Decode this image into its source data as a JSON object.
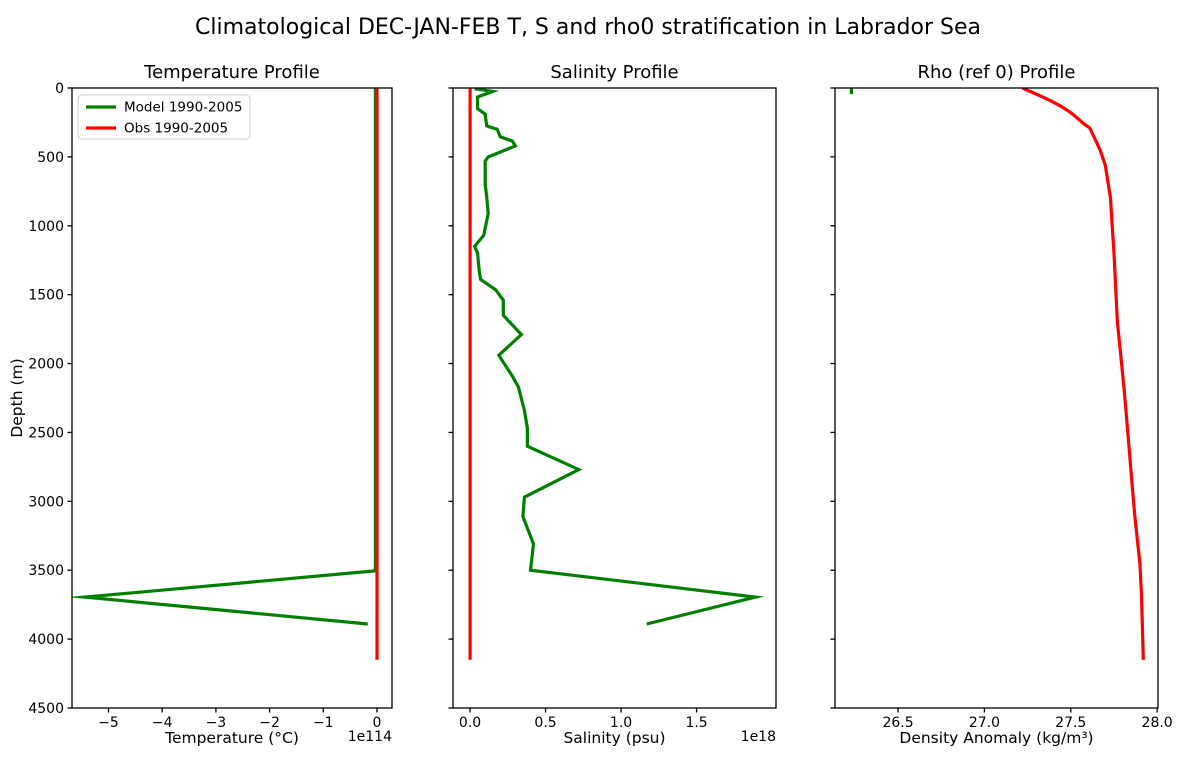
{
  "figure": {
    "title": "Climatological DEC-JAN-FEB T, S and rho0 stratification in Labrador Sea",
    "background": "#ffffff"
  },
  "colors": {
    "model": "#008000",
    "obs": "#ff0000",
    "spine": "#000000",
    "legend_border": "#cccccc"
  },
  "legend": {
    "entries": [
      {
        "label": "Model 1990-2005",
        "color": "#008000"
      },
      {
        "label": "Obs 1990-2005",
        "color": "#ff0000"
      }
    ]
  },
  "chart_data": [
    {
      "id": "temperature",
      "type": "line",
      "title": "Temperature Profile",
      "xlabel": "Temperature (°C)",
      "ylabel": "Depth (m)",
      "offset_text": "1e114",
      "xlim": [
        -5.68,
        0.28
      ],
      "ylim": [
        0,
        4500
      ],
      "y_inverted": true,
      "grid": false,
      "legend_visible": true,
      "show_ytick_labels": true,
      "xticks": [
        {
          "value": -5,
          "label": "−5"
        },
        {
          "value": -4,
          "label": "−4"
        },
        {
          "value": -3,
          "label": "−3"
        },
        {
          "value": -2,
          "label": "−2"
        },
        {
          "value": -1,
          "label": "−1"
        },
        {
          "value": 0,
          "label": "0"
        }
      ],
      "yticks": [
        {
          "value": 0,
          "label": "0"
        },
        {
          "value": 500,
          "label": "500"
        },
        {
          "value": 1000,
          "label": "1000"
        },
        {
          "value": 1500,
          "label": "1500"
        },
        {
          "value": 2000,
          "label": "2000"
        },
        {
          "value": 2500,
          "label": "2500"
        },
        {
          "value": 3000,
          "label": "3000"
        },
        {
          "value": 3500,
          "label": "3500"
        },
        {
          "value": 4000,
          "label": "4000"
        },
        {
          "value": 4500,
          "label": "4500"
        }
      ],
      "series": [
        {
          "id": "model",
          "name": "Model 1990-2005",
          "color": "#008000",
          "points": [
            [
              -0.03,
              0
            ],
            [
              -0.03,
              3480
            ],
            [
              -0.04,
              3505
            ],
            [
              -5.44,
              3695
            ],
            [
              -0.17,
              3890
            ]
          ]
        },
        {
          "id": "obs",
          "name": "Obs 1990-2005",
          "color": "#ff0000",
          "points": [
            [
              0,
              0
            ],
            [
              0,
              4150
            ]
          ]
        }
      ]
    },
    {
      "id": "salinity",
      "type": "line",
      "title": "Salinity Profile",
      "xlabel": "Salinity (psu)",
      "ylabel": "",
      "offset_text": "1e18",
      "xlim": [
        -0.113,
        2.026
      ],
      "ylim": [
        0,
        4500
      ],
      "y_inverted": true,
      "grid": false,
      "legend_visible": false,
      "show_ytick_labels": false,
      "xticks": [
        {
          "value": 0.0,
          "label": "0.0"
        },
        {
          "value": 0.5,
          "label": "0.5"
        },
        {
          "value": 1.0,
          "label": "1.0"
        },
        {
          "value": 1.5,
          "label": "1.5"
        }
      ],
      "yticks": [
        {
          "value": 0,
          "label": "0"
        },
        {
          "value": 500,
          "label": "500"
        },
        {
          "value": 1000,
          "label": "1000"
        },
        {
          "value": 1500,
          "label": "1500"
        },
        {
          "value": 2000,
          "label": "2000"
        },
        {
          "value": 2500,
          "label": "2500"
        },
        {
          "value": 3000,
          "label": "3000"
        },
        {
          "value": 3500,
          "label": "3500"
        },
        {
          "value": 4000,
          "label": "4000"
        },
        {
          "value": 4500,
          "label": "4500"
        }
      ],
      "series": [
        {
          "id": "model",
          "name": "Model 1990-2005",
          "color": "#008000",
          "points": [
            [
              0.03,
              5
            ],
            [
              0.15,
              25
            ],
            [
              0.05,
              65
            ],
            [
              0.05,
              150
            ],
            [
              0.1,
              190
            ],
            [
              0.11,
              275
            ],
            [
              0.18,
              300
            ],
            [
              0.2,
              355
            ],
            [
              0.28,
              385
            ],
            [
              0.3,
              420
            ],
            [
              0.12,
              500
            ],
            [
              0.1,
              530
            ],
            [
              0.1,
              700
            ],
            [
              0.11,
              790
            ],
            [
              0.12,
              910
            ],
            [
              0.09,
              1070
            ],
            [
              0.03,
              1150
            ],
            [
              0.05,
              1200
            ],
            [
              0.06,
              1320
            ],
            [
              0.07,
              1390
            ],
            [
              0.17,
              1465
            ],
            [
              0.22,
              1540
            ],
            [
              0.22,
              1650
            ],
            [
              0.34,
              1790
            ],
            [
              0.19,
              1940
            ],
            [
              0.28,
              2090
            ],
            [
              0.32,
              2170
            ],
            [
              0.36,
              2340
            ],
            [
              0.38,
              2470
            ],
            [
              0.38,
              2600
            ],
            [
              0.72,
              2770
            ],
            [
              0.36,
              2970
            ],
            [
              0.35,
              3110
            ],
            [
              0.42,
              3310
            ],
            [
              0.4,
              3500
            ],
            [
              1.89,
              3695
            ],
            [
              1.17,
              3890
            ]
          ]
        },
        {
          "id": "obs",
          "name": "Obs 1990-2005",
          "color": "#ff0000",
          "points": [
            [
              0,
              0
            ],
            [
              0,
              4150
            ]
          ]
        }
      ]
    },
    {
      "id": "rho0",
      "type": "line",
      "title": "Rho (ref 0) Profile",
      "xlabel": "Density Anomaly (kg/m³)",
      "ylabel": "",
      "offset_text": "",
      "xlim": [
        26.135,
        28.005
      ],
      "ylim": [
        0,
        4500
      ],
      "y_inverted": true,
      "grid": false,
      "legend_visible": false,
      "show_ytick_labels": false,
      "xticks": [
        {
          "value": 26.5,
          "label": "26.5"
        },
        {
          "value": 27.0,
          "label": "27.0"
        },
        {
          "value": 27.5,
          "label": "27.5"
        },
        {
          "value": 28.0,
          "label": "28.0"
        }
      ],
      "yticks": [
        {
          "value": 0,
          "label": "0"
        },
        {
          "value": 500,
          "label": "500"
        },
        {
          "value": 1000,
          "label": "1000"
        },
        {
          "value": 1500,
          "label": "1500"
        },
        {
          "value": 2000,
          "label": "2000"
        },
        {
          "value": 2500,
          "label": "2500"
        },
        {
          "value": 3000,
          "label": "3000"
        },
        {
          "value": 3500,
          "label": "3500"
        },
        {
          "value": 4000,
          "label": "4000"
        },
        {
          "value": 4500,
          "label": "4500"
        }
      ],
      "series": [
        {
          "id": "model",
          "name": "Model 1990-2005",
          "color": "#008000",
          "points": [
            [
              26.23,
              0
            ],
            [
              26.23,
              45
            ]
          ]
        },
        {
          "id": "obs",
          "name": "Obs 1990-2005",
          "color": "#ff0000",
          "points": [
            [
              27.22,
              0
            ],
            [
              27.31,
              50
            ],
            [
              27.38,
              90
            ],
            [
              27.44,
              130
            ],
            [
              27.49,
              170
            ],
            [
              27.53,
              210
            ],
            [
              27.57,
              255
            ],
            [
              27.61,
              290
            ],
            [
              27.64,
              370
            ],
            [
              27.67,
              450
            ],
            [
              27.7,
              560
            ],
            [
              27.715,
              680
            ],
            [
              27.73,
              800
            ],
            [
              27.74,
              1000
            ],
            [
              27.75,
              1200
            ],
            [
              27.76,
              1450
            ],
            [
              27.77,
              1700
            ],
            [
              27.79,
              1950
            ],
            [
              27.81,
              2200
            ],
            [
              27.83,
              2500
            ],
            [
              27.85,
              2800
            ],
            [
              27.87,
              3100
            ],
            [
              27.9,
              3450
            ],
            [
              27.91,
              3700
            ],
            [
              27.92,
              4150
            ]
          ]
        }
      ]
    }
  ]
}
